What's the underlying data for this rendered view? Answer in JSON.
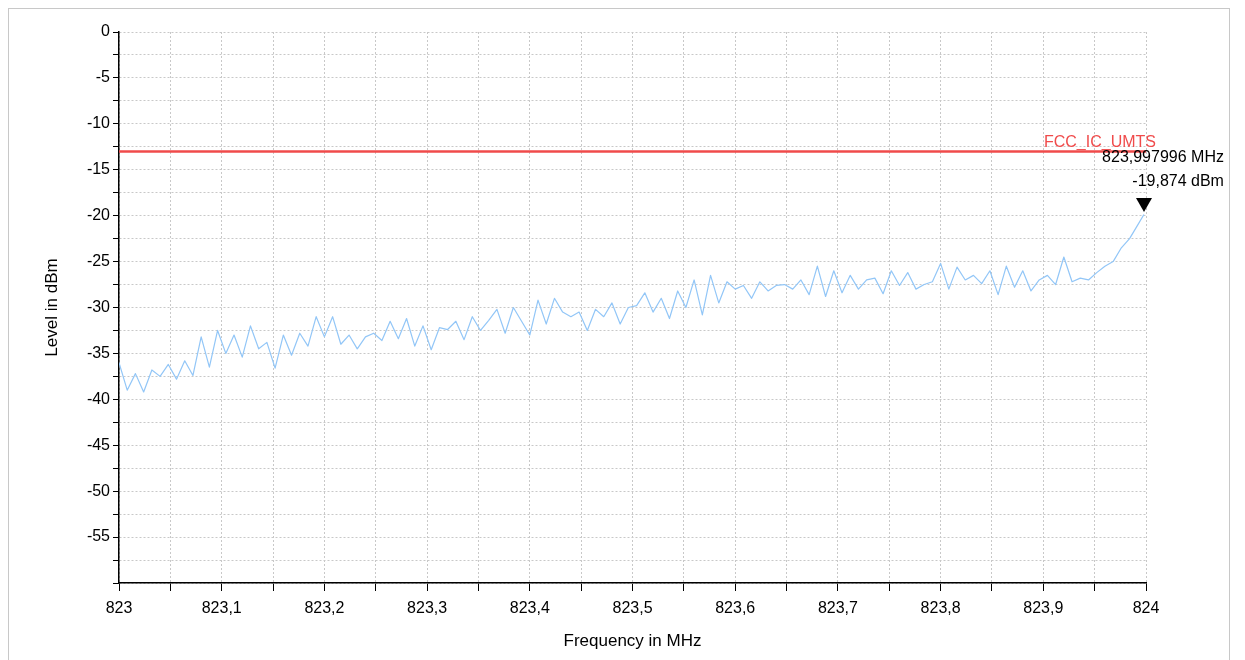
{
  "chart_data": {
    "type": "line",
    "xlabel": "Frequency in MHz",
    "ylabel": "Level in dBm",
    "xlim": [
      823,
      824
    ],
    "xticks": [
      823,
      {
        "value": 823.05,
        "label": null
      },
      {
        "value": 823.1,
        "label": "823,1"
      },
      {
        "value": 823.15,
        "label": null
      },
      {
        "value": 823.2,
        "label": "823,2"
      },
      {
        "value": 823.25,
        "label": null
      },
      {
        "value": 823.3,
        "label": "823,3"
      },
      {
        "value": 823.35,
        "label": null
      },
      {
        "value": 823.4,
        "label": "823,4"
      },
      {
        "value": 823.45,
        "label": null
      },
      {
        "value": 823.5,
        "label": "823,5"
      },
      {
        "value": 823.55,
        "label": null
      },
      {
        "value": 823.6,
        "label": "823,6"
      },
      {
        "value": 823.65,
        "label": null
      },
      {
        "value": 823.7,
        "label": "823,7"
      },
      {
        "value": 823.75,
        "label": null
      },
      {
        "value": 823.8,
        "label": "823,8"
      },
      {
        "value": 823.85,
        "label": null
      },
      {
        "value": 823.9,
        "label": "823,9"
      },
      {
        "value": 823.95,
        "label": null
      },
      824
    ],
    "ylim": [
      -60,
      0
    ],
    "yticks": [
      0,
      {
        "value": -2.5,
        "label": null
      },
      -5,
      {
        "value": -7.5,
        "label": null
      },
      -10,
      {
        "value": -12.5,
        "label": null
      },
      -15,
      {
        "value": -17.5,
        "label": null
      },
      -20,
      {
        "value": -22.5,
        "label": null
      },
      -25,
      {
        "value": -27.5,
        "label": null
      },
      -30,
      {
        "value": -32.5,
        "label": null
      },
      -35,
      {
        "value": -37.5,
        "label": null
      },
      -40,
      {
        "value": -42.5,
        "label": null
      },
      -45,
      {
        "value": -47.5,
        "label": null
      },
      -50,
      {
        "value": -52.5,
        "label": null
      },
      -55,
      {
        "value": -57.5,
        "label": null
      },
      {
        "value": -60,
        "label": null
      }
    ],
    "grid": true,
    "legend": false,
    "marker": "none",
    "line_style": "solid",
    "x": [
      823.0,
      823.008,
      823.016,
      823.024,
      823.032,
      823.04,
      823.048,
      823.056,
      823.064,
      823.072,
      823.08,
      823.088,
      823.096,
      823.104,
      823.112,
      823.12,
      823.128,
      823.136,
      823.144,
      823.152,
      823.16,
      823.168,
      823.176,
      823.184,
      823.192,
      823.2,
      823.208,
      823.216,
      823.224,
      823.232,
      823.24,
      823.248,
      823.256,
      823.264,
      823.272,
      823.28,
      823.288,
      823.296,
      823.304,
      823.312,
      823.32,
      823.328,
      823.336,
      823.344,
      823.352,
      823.36,
      823.368,
      823.376,
      823.384,
      823.392,
      823.4,
      823.408,
      823.416,
      823.424,
      823.432,
      823.44,
      823.448,
      823.456,
      823.464,
      823.472,
      823.48,
      823.488,
      823.496,
      823.504,
      823.512,
      823.52,
      823.528,
      823.536,
      823.544,
      823.552,
      823.56,
      823.568,
      823.576,
      823.584,
      823.592,
      823.6,
      823.608,
      823.616,
      823.624,
      823.632,
      823.64,
      823.648,
      823.656,
      823.664,
      823.672,
      823.68,
      823.688,
      823.696,
      823.704,
      823.712,
      823.72,
      823.728,
      823.736,
      823.744,
      823.752,
      823.76,
      823.768,
      823.776,
      823.784,
      823.792,
      823.8,
      823.808,
      823.816,
      823.824,
      823.832,
      823.84,
      823.848,
      823.856,
      823.864,
      823.872,
      823.88,
      823.888,
      823.896,
      823.904,
      823.912,
      823.92,
      823.928,
      823.936,
      823.944,
      823.952,
      823.96,
      823.968,
      823.976,
      823.984,
      823.992,
      823.997996
    ],
    "series": [
      {
        "color": "#92c6f7",
        "values": [
          -36.0,
          -39.0,
          -37.2,
          -39.2,
          -36.8,
          -37.5,
          -36.2,
          -37.8,
          -35.8,
          -37.4,
          -33.2,
          -36.5,
          -32.5,
          -35.0,
          -33.0,
          -35.4,
          -32.0,
          -34.5,
          -33.8,
          -36.6,
          -33.0,
          -35.2,
          -32.8,
          -34.2,
          -31.0,
          -33.2,
          -31.0,
          -34.0,
          -33.0,
          -34.5,
          -33.2,
          -32.8,
          -33.6,
          -31.5,
          -33.4,
          -31.2,
          -34.2,
          -32.0,
          -34.6,
          -32.2,
          -32.4,
          -31.5,
          -33.5,
          -31.0,
          -32.5,
          -31.4,
          -30.2,
          -32.8,
          -30.0,
          -31.5,
          -33.0,
          -29.2,
          -31.8,
          -29.0,
          -30.5,
          -31.0,
          -30.5,
          -32.5,
          -30.2,
          -31.0,
          -29.5,
          -31.8,
          -30.0,
          -29.8,
          -28.4,
          -30.5,
          -29.0,
          -31.2,
          -28.2,
          -30.0,
          -27.0,
          -30.8,
          -26.5,
          -29.5,
          -27.2,
          -28.0,
          -27.6,
          -29.0,
          -27.2,
          -28.2,
          -27.6,
          -27.5,
          -28.0,
          -27.0,
          -28.6,
          -25.5,
          -28.8,
          -26.0,
          -28.4,
          -26.5,
          -28.0,
          -27.0,
          -26.8,
          -28.5,
          -26.0,
          -27.6,
          -26.2,
          -28.0,
          -27.5,
          -27.2,
          -25.2,
          -28.0,
          -25.6,
          -27.0,
          -26.5,
          -27.4,
          -26.0,
          -28.6,
          -25.5,
          -27.8,
          -26.0,
          -28.2,
          -27.0,
          -26.5,
          -27.5,
          -24.5,
          -27.2,
          -26.8,
          -27.0,
          -26.2,
          -25.5,
          -25.0,
          -23.5,
          -22.5,
          -21.0,
          -19.874
        ]
      }
    ],
    "ref_lines": [
      {
        "axis": "y",
        "value": -13,
        "label": "FCC_IC_UMTS",
        "color": "#f04b4b"
      }
    ],
    "annotations": [
      {
        "text": "823,997996 MHz\n-19,874 dBm",
        "x": 823.997996,
        "y": -19.874
      }
    ]
  }
}
